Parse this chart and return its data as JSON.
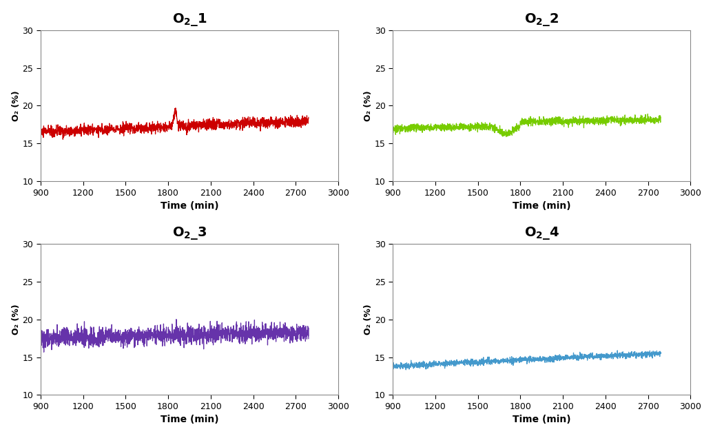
{
  "titles": [
    "$O_2$_1",
    "$O_2$_2",
    "$O_2$_3",
    "$O_2$_4"
  ],
  "raw_titles": [
    "O₂_1",
    "O₂_2",
    "O₂_3",
    "O₂_4"
  ],
  "colors": [
    "#cc0000",
    "#77cc00",
    "#6633aa",
    "#4499cc"
  ],
  "xlabel": "Time (min)",
  "ylabel": "O₂ (%)",
  "xlim": [
    900,
    3000
  ],
  "ylim": [
    10,
    30
  ],
  "xticks": [
    900,
    1200,
    1500,
    1800,
    2100,
    2400,
    2700,
    3000
  ],
  "yticks": [
    10,
    15,
    20,
    25,
    30
  ],
  "x_start": 900,
  "x_end": 2790,
  "num_points": 1900,
  "background_color": "#ffffff",
  "linewidth": 0.9
}
